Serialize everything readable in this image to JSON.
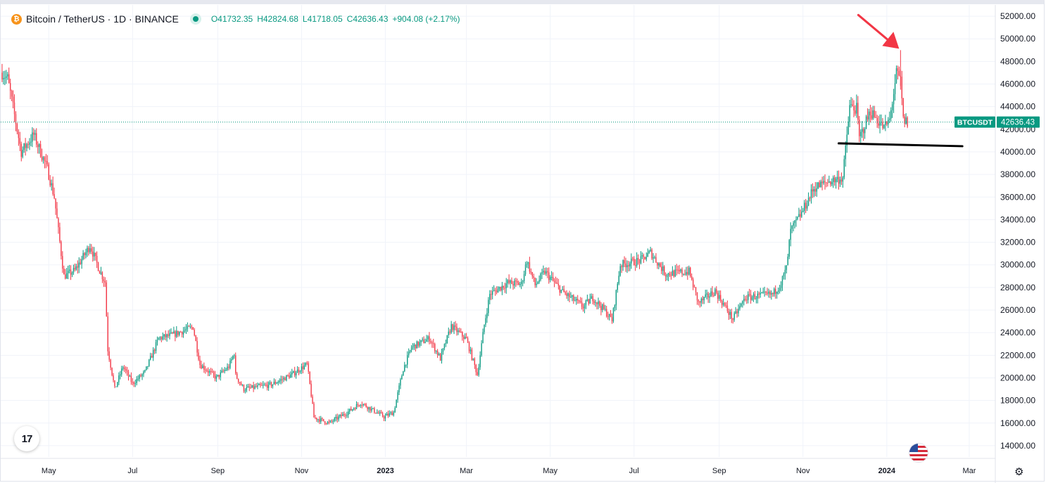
{
  "header": {
    "symbol": "Bitcoin / TetherUS · 1D · BINANCE",
    "coin_glyph": "₿",
    "open": "O41732.35",
    "high": "H42824.68",
    "low": "L41718.05",
    "close": "C42636.43",
    "change": "+904.08 (+2.17%)"
  },
  "price_label": {
    "symbol": "BTCUSDT",
    "value": "42636.43"
  },
  "logo_text": "17",
  "colors": {
    "up": "#089981",
    "down": "#f23645",
    "grid": "#f0f3fa",
    "line": "#000000",
    "arrow": "#f23645"
  },
  "chart_data": {
    "type": "candlestick",
    "interval": "1D",
    "x_labels": [
      "May",
      "Jul",
      "Sep",
      "Nov",
      "2023",
      "Mar",
      "May",
      "Jul",
      "Sep",
      "Nov",
      "2024",
      "Mar"
    ],
    "x_label_dates": [
      "2022-05-01",
      "2022-07-01",
      "2022-09-01",
      "2022-11-01",
      "2023-01-01",
      "2023-03-01",
      "2023-05-01",
      "2023-07-01",
      "2023-09-01",
      "2023-11-01",
      "2024-01-01",
      "2024-03-01"
    ],
    "x_range": [
      "2022-03-27",
      "2024-03-20"
    ],
    "y_ticks": [
      14000,
      16000,
      18000,
      20000,
      22000,
      24000,
      26000,
      28000,
      30000,
      32000,
      34000,
      36000,
      38000,
      40000,
      42000,
      44000,
      46000,
      48000,
      50000,
      52000
    ],
    "ylim": [
      13000,
      53000
    ],
    "last_price": 42636.43,
    "support_line": {
      "start": "2023-11-27",
      "end": "2024-02-25",
      "y_start": 40750,
      "y_end": 40500
    },
    "arrow_target": {
      "date": "2024-01-11",
      "price": 49000
    },
    "anchors": [
      [
        "2022-03-28",
        47000
      ],
      [
        "2022-04-01",
        46500
      ],
      [
        "2022-04-11",
        40000
      ],
      [
        "2022-04-20",
        41500
      ],
      [
        "2022-04-30",
        38500
      ],
      [
        "2022-05-05",
        36000
      ],
      [
        "2022-05-10",
        31000
      ],
      [
        "2022-05-12",
        29000
      ],
      [
        "2022-05-20",
        29500
      ],
      [
        "2022-05-31",
        31700
      ],
      [
        "2022-06-07",
        29500
      ],
      [
        "2022-06-11",
        28500
      ],
      [
        "2022-06-13",
        22500
      ],
      [
        "2022-06-18",
        19000
      ],
      [
        "2022-06-24",
        21000
      ],
      [
        "2022-07-01",
        19500
      ],
      [
        "2022-07-10",
        20500
      ],
      [
        "2022-07-20",
        23500
      ],
      [
        "2022-07-30",
        23800
      ],
      [
        "2022-08-14",
        24500
      ],
      [
        "2022-08-19",
        21200
      ],
      [
        "2022-08-31",
        20000
      ],
      [
        "2022-09-09",
        21000
      ],
      [
        "2022-09-13",
        22200
      ],
      [
        "2022-09-14",
        20200
      ],
      [
        "2022-09-20",
        19000
      ],
      [
        "2022-10-10",
        19400
      ],
      [
        "2022-10-25",
        20300
      ],
      [
        "2022-11-05",
        21200
      ],
      [
        "2022-11-08",
        18500
      ],
      [
        "2022-11-10",
        16500
      ],
      [
        "2022-11-21",
        16000
      ],
      [
        "2022-12-05",
        17000
      ],
      [
        "2022-12-14",
        17800
      ],
      [
        "2022-12-31",
        16550
      ],
      [
        "2023-01-07",
        16950
      ],
      [
        "2023-01-14",
        20800
      ],
      [
        "2023-01-20",
        22700
      ],
      [
        "2023-02-02",
        23500
      ],
      [
        "2023-02-10",
        21700
      ],
      [
        "2023-02-18",
        24600
      ],
      [
        "2023-03-01",
        23400
      ],
      [
        "2023-03-09",
        20300
      ],
      [
        "2023-03-14",
        24700
      ],
      [
        "2023-03-18",
        27400
      ],
      [
        "2023-03-31",
        28400
      ],
      [
        "2023-04-10",
        28300
      ],
      [
        "2023-04-14",
        30400
      ],
      [
        "2023-04-20",
        28200
      ],
      [
        "2023-04-27",
        29400
      ],
      [
        "2023-05-10",
        27600
      ],
      [
        "2023-05-25",
        26300
      ],
      [
        "2023-06-01",
        27100
      ],
      [
        "2023-06-10",
        25900
      ],
      [
        "2023-06-15",
        25100
      ],
      [
        "2023-06-21",
        30000
      ],
      [
        "2023-07-06",
        30400
      ],
      [
        "2023-07-13",
        31100
      ],
      [
        "2023-07-24",
        29200
      ],
      [
        "2023-08-10",
        29400
      ],
      [
        "2023-08-17",
        26600
      ],
      [
        "2023-08-29",
        27700
      ],
      [
        "2023-09-11",
        25200
      ],
      [
        "2023-09-20",
        27100
      ],
      [
        "2023-10-10",
        27400
      ],
      [
        "2023-10-16",
        28400
      ],
      [
        "2023-10-20",
        29700
      ],
      [
        "2023-10-23",
        33000
      ],
      [
        "2023-10-31",
        34600
      ],
      [
        "2023-11-09",
        36800
      ],
      [
        "2023-11-20",
        37400
      ],
      [
        "2023-11-30",
        37700
      ],
      [
        "2023-12-05",
        44000
      ],
      [
        "2023-12-10",
        43800
      ],
      [
        "2023-12-12",
        41200
      ],
      [
        "2023-12-20",
        43600
      ],
      [
        "2023-12-30",
        42100
      ],
      [
        "2024-01-03",
        42800
      ],
      [
        "2024-01-08",
        46900
      ],
      [
        "2024-01-11",
        46300
      ],
      [
        "2024-01-13",
        42800
      ],
      [
        "2024-01-16",
        42600
      ]
    ]
  }
}
